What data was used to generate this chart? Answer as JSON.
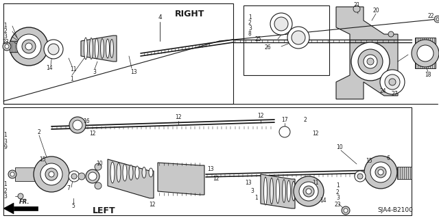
{
  "background_color": "#ffffff",
  "line_color": "#1a1a1a",
  "gray_fill": "#c8c8c8",
  "light_fill": "#e8e8e8",
  "diagram_code": "SJA4-B2100",
  "right_label": "RIGHT",
  "left_label": "LEFT",
  "fr_label": "FR.",
  "figsize": [
    6.4,
    3.19
  ],
  "dpi": 100
}
